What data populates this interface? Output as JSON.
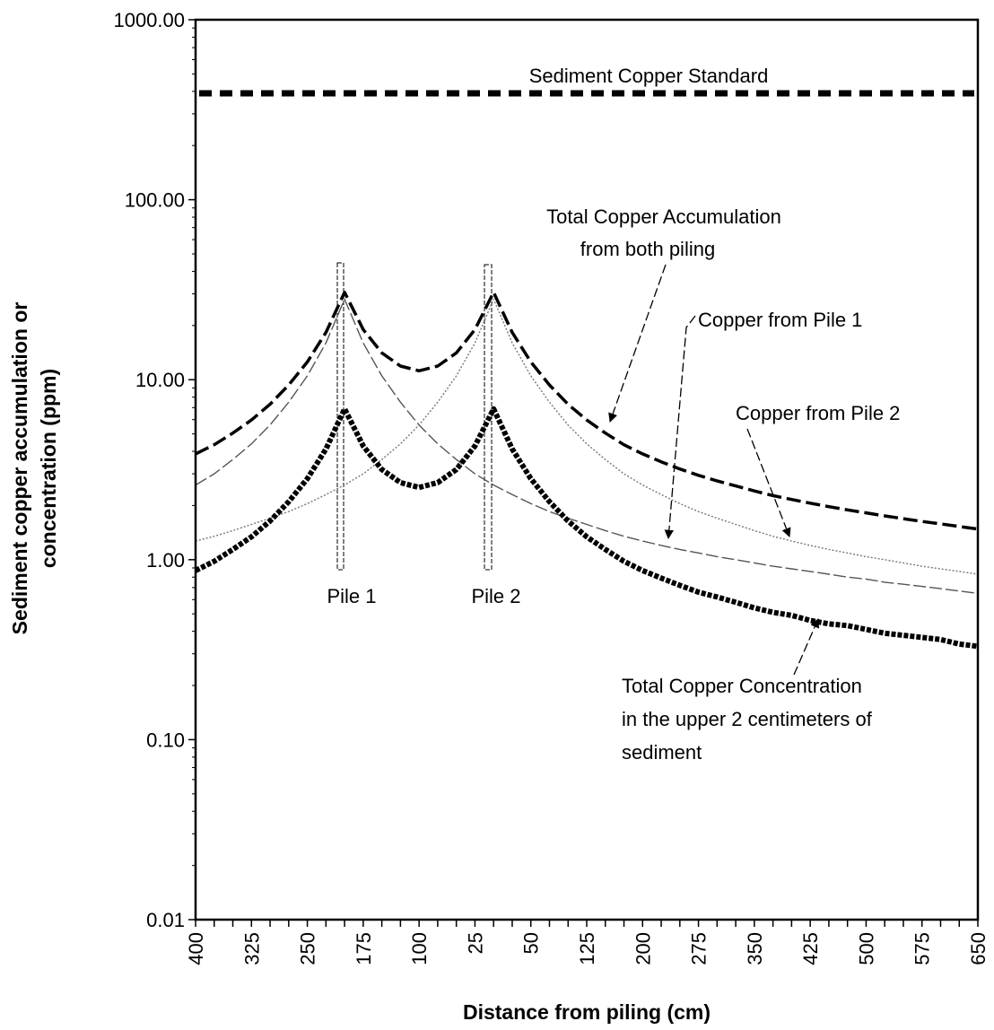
{
  "chart_data": {
    "type": "line",
    "log_y": true,
    "ylabel": [
      "Sediment copper accumulation or",
      "concentration (ppm)"
    ],
    "xlabel": "Distance from piling (cm)",
    "categories": [
      "400",
      null,
      null,
      "325",
      null,
      null,
      "250",
      null,
      null,
      "175",
      null,
      null,
      "100",
      null,
      null,
      "25",
      null,
      null,
      "50",
      null,
      null,
      "125",
      null,
      null,
      "200",
      null,
      null,
      "275",
      null,
      null,
      "350",
      null,
      null,
      "425",
      null,
      null,
      "500",
      null,
      null,
      "575",
      null,
      null,
      "650"
    ],
    "ylim": [
      0.01,
      1000
    ],
    "yticks": [
      0.01,
      {
        "value": 0.1,
        "label": "0.10"
      },
      {
        "value": 1,
        "label": "1.00"
      },
      {
        "value": 10,
        "label": "10.00"
      },
      {
        "value": 100,
        "label": "100.00"
      },
      {
        "value": 1000,
        "label": "1000.00"
      }
    ],
    "series": [
      {
        "color": "#000000",
        "style": "total",
        "values": [
          3.87,
          4.35,
          5.05,
          5.97,
          7.3,
          9.35,
          12.55,
          18.3,
          30.6,
          19.0,
          14.1,
          11.9,
          11.2,
          11.9,
          14.1,
          19.0,
          30.6,
          18.3,
          12.55,
          9.35,
          7.3,
          5.97,
          5.05,
          4.35,
          3.87,
          3.5,
          3.19,
          2.94,
          2.74,
          2.57,
          2.41,
          2.27,
          2.16,
          2.06,
          1.97,
          1.89,
          1.82,
          1.75,
          1.69,
          1.63,
          1.58,
          1.53,
          1.48
        ]
      },
      {
        "color": "#555555",
        "style": "pile1",
        "values": [
          2.6,
          3.0,
          3.6,
          4.4,
          5.6,
          7.5,
          10.5,
          16,
          28,
          16,
          10.5,
          7.5,
          5.6,
          4.4,
          3.6,
          3.0,
          2.6,
          2.3,
          2.05,
          1.85,
          1.7,
          1.57,
          1.45,
          1.35,
          1.27,
          1.2,
          1.14,
          1.09,
          1.04,
          1.0,
          0.96,
          0.92,
          0.89,
          0.86,
          0.83,
          0.8,
          0.78,
          0.75,
          0.73,
          0.71,
          0.69,
          0.67,
          0.65
        ]
      },
      {
        "color": "#777777",
        "style": "pile2",
        "values": [
          1.27,
          1.35,
          1.45,
          1.57,
          1.7,
          1.85,
          2.05,
          2.3,
          2.6,
          3.0,
          3.6,
          4.4,
          5.6,
          7.5,
          10.5,
          16,
          28,
          16,
          10.5,
          7.5,
          5.6,
          4.4,
          3.6,
          3.0,
          2.6,
          2.3,
          2.05,
          1.85,
          1.7,
          1.57,
          1.45,
          1.35,
          1.27,
          1.2,
          1.14,
          1.09,
          1.04,
          1.0,
          0.96,
          0.92,
          0.89,
          0.86,
          0.83
        ]
      },
      {
        "color": "#000000",
        "style": "concentration",
        "values": [
          0.87,
          0.98,
          1.14,
          1.34,
          1.64,
          2.1,
          2.82,
          4.12,
          6.89,
          4.28,
          3.17,
          2.68,
          2.52,
          2.68,
          3.17,
          4.28,
          6.89,
          4.12,
          2.82,
          2.1,
          1.64,
          1.34,
          1.14,
          0.98,
          0.87,
          0.79,
          0.72,
          0.66,
          0.62,
          0.58,
          0.54,
          0.51,
          0.49,
          0.46,
          0.44,
          0.43,
          0.41,
          0.39,
          0.38,
          0.37,
          0.36,
          0.34,
          0.33
        ]
      }
    ],
    "reference_line": {
      "label": "Sediment Copper Standard",
      "value": 390,
      "color": "#000000"
    },
    "annotations": {
      "accumulation": [
        "Total Copper Accumulation",
        "from both piling"
      ],
      "pile1_line": "Copper from Pile 1",
      "pile2_line": "Copper from Pile 2",
      "concentration": [
        "Total Copper Concentration",
        "in the upper 2 centimeters of",
        "sediment"
      ],
      "pile1": "Pile 1",
      "pile2": "Pile 2"
    }
  }
}
